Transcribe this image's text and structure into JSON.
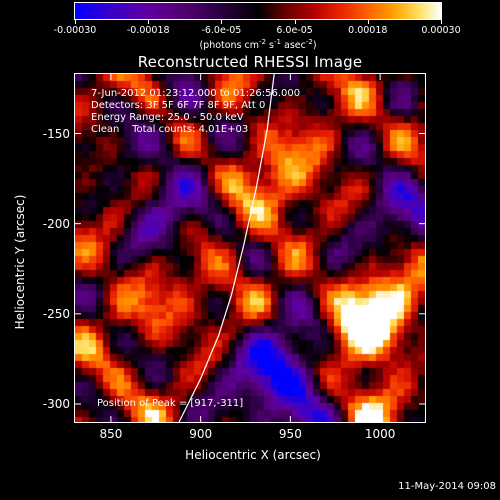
{
  "colorbar": {
    "tick_labels": [
      "-0.00030",
      "-0.00018",
      "-6.0e-05",
      "6.0e-05",
      "0.00018",
      "0.00030"
    ],
    "tick_values": [
      -0.0003,
      -0.00018,
      -6e-05,
      6e-05,
      0.00018,
      0.0003
    ],
    "range": [
      -0.0003,
      0.0003
    ],
    "units_main": "(photons cm",
    "units_sup1": "-2",
    "units_mid": " s",
    "units_sup2": "-1",
    "units_end": " asec",
    "units_sup3": "-2",
    "units_close": ")"
  },
  "title": "Reconstructed RHESSI Image",
  "info": {
    "time_range": "7-Jun-2012 01:23:12.000 to 01:26:56.000",
    "detectors": "Detectors: 3F 5F 6F 7F 8F 9F, Att 0",
    "energy": "Energy Range: 25.0 - 50.0 keV",
    "clean": "Clean    Total counts: 4.01E+03",
    "peak": "Position of Peak = [917,-311]"
  },
  "axes": {
    "xlabel": "Heliocentric X (arcsec)",
    "ylabel": "Heliocentric Y (arcsec)",
    "xlim": [
      830,
      1025
    ],
    "ylim": [
      -310,
      -117
    ],
    "xticks": [
      850,
      900,
      950,
      1000
    ],
    "xtick_labels": [
      "850",
      "900",
      "950",
      "1000"
    ],
    "yticks": [
      -150,
      -200,
      -250,
      -300
    ],
    "ytick_labels": [
      "-150",
      "-200",
      "-250",
      "-300"
    ]
  },
  "limb_curve": {
    "color": "#ffffff",
    "points": [
      [
        888,
        -310
      ],
      [
        900,
        -286
      ],
      [
        910,
        -262
      ],
      [
        917,
        -240
      ],
      [
        924,
        -212
      ],
      [
        931,
        -180
      ],
      [
        937,
        -148
      ],
      [
        941,
        -117
      ]
    ]
  },
  "footer": {
    "datestamp": "11-May-2014 09:08"
  }
}
